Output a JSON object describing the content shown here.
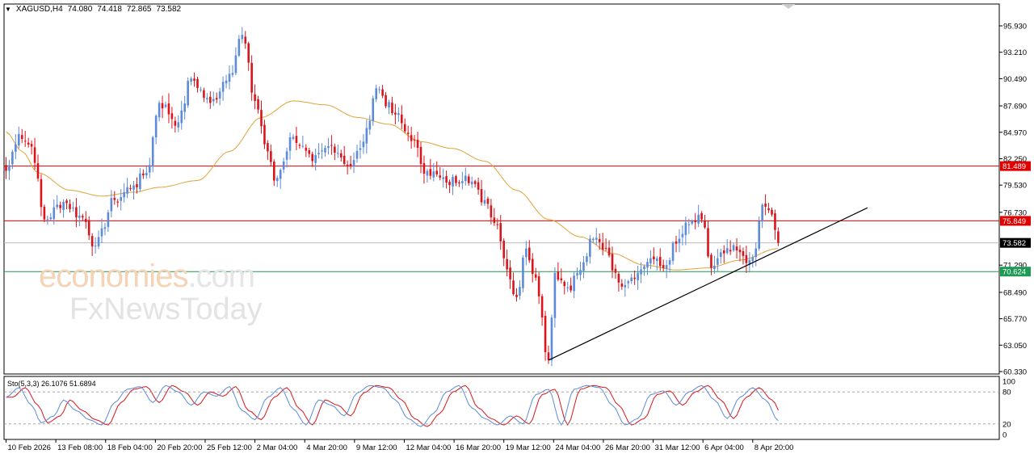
{
  "header": {
    "symbol": "XAGUSD,H4",
    "open": "74.080",
    "high": "74.418",
    "low": "72.865",
    "close": "73.582"
  },
  "watermark": {
    "brand_top": "economies",
    "brand_top_suffix": ".com",
    "brand_bottom": "FxNewsToday"
  },
  "colors": {
    "bull": "#5b8bd9",
    "bear": "#d9141b",
    "ma": "#e0a336",
    "resistance": "#e00000",
    "support": "#1f9a55",
    "current": "#bbbbbb",
    "trendline": "#000000",
    "sto_main": "#5b8bd9",
    "sto_signal": "#d9141b"
  },
  "chart_data": [
    {
      "type": "candlestick",
      "ylim": [
        60.33,
        95.93
      ],
      "price_ticks": [
        "95.930",
        "93.210",
        "90.490",
        "87.690",
        "84.970",
        "82.250",
        "79.530",
        "76.730",
        "73.582",
        "71.290",
        "68.490",
        "65.770",
        "63.050",
        "60.330"
      ],
      "time_labels": [
        "10 Feb 2026",
        "13 Feb 08:00",
        "18 Feb 04:00",
        "20 Feb 20:00",
        "25 Feb 12:00",
        "2 Mar 04:00",
        "4 Mar 20:00",
        "9 Mar 12:00",
        "12 Mar 04:00",
        "16 Mar 20:00",
        "19 Mar 12:00",
        "24 Mar 04:00",
        "26 Mar 20:00",
        "31 Mar 12:00",
        "6 Apr 04:00",
        "8 Apr 20:00"
      ],
      "close_anchors": [
        {
          "i": 0,
          "c": 81.0
        },
        {
          "i": 4,
          "c": 84.8
        },
        {
          "i": 8,
          "c": 83.5
        },
        {
          "i": 12,
          "c": 76.0
        },
        {
          "i": 18,
          "c": 77.8
        },
        {
          "i": 24,
          "c": 76.2
        },
        {
          "i": 28,
          "c": 73.3
        },
        {
          "i": 34,
          "c": 78.0
        },
        {
          "i": 40,
          "c": 79.5
        },
        {
          "i": 44,
          "c": 80.8
        },
        {
          "i": 48,
          "c": 88.0
        },
        {
          "i": 54,
          "c": 86.0
        },
        {
          "i": 58,
          "c": 90.5
        },
        {
          "i": 64,
          "c": 88.0
        },
        {
          "i": 70,
          "c": 91.0
        },
        {
          "i": 74,
          "c": 95.0
        },
        {
          "i": 78,
          "c": 88.2
        },
        {
          "i": 82,
          "c": 83.0
        },
        {
          "i": 84,
          "c": 80.0
        },
        {
          "i": 90,
          "c": 84.5
        },
        {
          "i": 96,
          "c": 82.0
        },
        {
          "i": 102,
          "c": 83.6
        },
        {
          "i": 108,
          "c": 81.5
        },
        {
          "i": 112,
          "c": 84.0
        },
        {
          "i": 116,
          "c": 89.5
        },
        {
          "i": 122,
          "c": 86.8
        },
        {
          "i": 126,
          "c": 84.8
        },
        {
          "i": 132,
          "c": 81.0
        },
        {
          "i": 138,
          "c": 79.8
        },
        {
          "i": 144,
          "c": 80.5
        },
        {
          "i": 150,
          "c": 78.0
        },
        {
          "i": 154,
          "c": 75.5
        },
        {
          "i": 156,
          "c": 72.0
        },
        {
          "i": 160,
          "c": 68.0
        },
        {
          "i": 163,
          "c": 73.0
        },
        {
          "i": 166,
          "c": 70.0
        },
        {
          "i": 170,
          "c": 61.5
        },
        {
          "i": 172,
          "c": 70.5
        },
        {
          "i": 176,
          "c": 69.0
        },
        {
          "i": 180,
          "c": 70.8
        },
        {
          "i": 184,
          "c": 74.0
        },
        {
          "i": 188,
          "c": 73.0
        },
        {
          "i": 192,
          "c": 69.5
        },
        {
          "i": 198,
          "c": 70.5
        },
        {
          "i": 202,
          "c": 72.0
        },
        {
          "i": 206,
          "c": 71.0
        },
        {
          "i": 210,
          "c": 73.5
        },
        {
          "i": 214,
          "c": 75.5
        },
        {
          "i": 218,
          "c": 76.0
        },
        {
          "i": 221,
          "c": 71.0
        },
        {
          "i": 225,
          "c": 72.5
        },
        {
          "i": 229,
          "c": 72.8
        },
        {
          "i": 232,
          "c": 71.5
        },
        {
          "i": 235,
          "c": 73.0
        },
        {
          "i": 237,
          "c": 77.5
        },
        {
          "i": 240,
          "c": 76.5
        },
        {
          "i": 242,
          "c": 73.582
        }
      ],
      "moving_average": {
        "anchors": [
          {
            "i": 0,
            "v": 85.0
          },
          {
            "i": 5,
            "v": 83.0
          },
          {
            "i": 10,
            "v": 80.8
          },
          {
            "i": 20,
            "v": 79.0
          },
          {
            "i": 30,
            "v": 78.4
          },
          {
            "i": 40,
            "v": 78.8
          },
          {
            "i": 48,
            "v": 79.3
          },
          {
            "i": 60,
            "v": 80.0
          },
          {
            "i": 70,
            "v": 83.0
          },
          {
            "i": 80,
            "v": 86.5
          },
          {
            "i": 90,
            "v": 88.2
          },
          {
            "i": 100,
            "v": 87.8
          },
          {
            "i": 110,
            "v": 86.5
          },
          {
            "i": 120,
            "v": 85.8
          },
          {
            "i": 130,
            "v": 84.0
          },
          {
            "i": 140,
            "v": 83.3
          },
          {
            "i": 150,
            "v": 82.0
          },
          {
            "i": 160,
            "v": 79.0
          },
          {
            "i": 170,
            "v": 76.0
          },
          {
            "i": 180,
            "v": 74.2
          },
          {
            "i": 190,
            "v": 72.5
          },
          {
            "i": 200,
            "v": 71.3
          },
          {
            "i": 210,
            "v": 70.8
          },
          {
            "i": 220,
            "v": 71.0
          },
          {
            "i": 230,
            "v": 71.8
          },
          {
            "i": 242,
            "v": 73.0
          }
        ]
      },
      "horizontal_lines": [
        {
          "label": "81.489",
          "value": 81.489,
          "role": "resistance"
        },
        {
          "label": "75.849",
          "value": 75.849,
          "role": "resistance"
        },
        {
          "label": "73.582",
          "value": 73.582,
          "role": "current"
        },
        {
          "label": "70.624",
          "value": 70.624,
          "role": "support"
        }
      ],
      "trendline": {
        "from": {
          "i": 170,
          "v": 61.5
        },
        "to": {
          "i": 270,
          "v": 77.2
        }
      }
    },
    {
      "type": "line",
      "indicator": "Sto(5,3,3) 26.1076 51.6894",
      "ylim": [
        0,
        100
      ],
      "levels": [
        {
          "label": "100",
          "value": 100
        },
        {
          "label": "80",
          "value": 80
        },
        {
          "label": "20",
          "value": 20
        },
        {
          "label": "0",
          "value": 0
        }
      ],
      "main_anchors": [
        {
          "i": 0,
          "v": 70
        },
        {
          "i": 4,
          "v": 88
        },
        {
          "i": 8,
          "v": 55
        },
        {
          "i": 11,
          "v": 22
        },
        {
          "i": 15,
          "v": 35
        },
        {
          "i": 18,
          "v": 65
        },
        {
          "i": 22,
          "v": 45
        },
        {
          "i": 26,
          "v": 28
        },
        {
          "i": 30,
          "v": 18
        },
        {
          "i": 34,
          "v": 60
        },
        {
          "i": 38,
          "v": 85
        },
        {
          "i": 42,
          "v": 90
        },
        {
          "i": 46,
          "v": 60
        },
        {
          "i": 50,
          "v": 92
        },
        {
          "i": 54,
          "v": 80
        },
        {
          "i": 58,
          "v": 55
        },
        {
          "i": 62,
          "v": 80
        },
        {
          "i": 66,
          "v": 72
        },
        {
          "i": 70,
          "v": 90
        },
        {
          "i": 74,
          "v": 45
        },
        {
          "i": 78,
          "v": 28
        },
        {
          "i": 82,
          "v": 70
        },
        {
          "i": 86,
          "v": 88
        },
        {
          "i": 90,
          "v": 48
        },
        {
          "i": 94,
          "v": 18
        },
        {
          "i": 98,
          "v": 65
        },
        {
          "i": 102,
          "v": 55
        },
        {
          "i": 106,
          "v": 35
        },
        {
          "i": 110,
          "v": 78
        },
        {
          "i": 114,
          "v": 92
        },
        {
          "i": 118,
          "v": 88
        },
        {
          "i": 122,
          "v": 65
        },
        {
          "i": 126,
          "v": 30
        },
        {
          "i": 130,
          "v": 15
        },
        {
          "i": 134,
          "v": 40
        },
        {
          "i": 138,
          "v": 80
        },
        {
          "i": 142,
          "v": 92
        },
        {
          "i": 146,
          "v": 50
        },
        {
          "i": 150,
          "v": 30
        },
        {
          "i": 154,
          "v": 18
        },
        {
          "i": 158,
          "v": 35
        },
        {
          "i": 162,
          "v": 20
        },
        {
          "i": 166,
          "v": 75
        },
        {
          "i": 170,
          "v": 85
        },
        {
          "i": 174,
          "v": 18
        },
        {
          "i": 178,
          "v": 85
        },
        {
          "i": 182,
          "v": 92
        },
        {
          "i": 186,
          "v": 88
        },
        {
          "i": 190,
          "v": 55
        },
        {
          "i": 194,
          "v": 18
        },
        {
          "i": 198,
          "v": 30
        },
        {
          "i": 202,
          "v": 75
        },
        {
          "i": 206,
          "v": 82
        },
        {
          "i": 210,
          "v": 55
        },
        {
          "i": 214,
          "v": 80
        },
        {
          "i": 218,
          "v": 92
        },
        {
          "i": 222,
          "v": 65
        },
        {
          "i": 226,
          "v": 30
        },
        {
          "i": 230,
          "v": 70
        },
        {
          "i": 234,
          "v": 88
        },
        {
          "i": 238,
          "v": 65
        },
        {
          "i": 242,
          "v": 26.1
        }
      ],
      "signal_lag": 2
    }
  ]
}
